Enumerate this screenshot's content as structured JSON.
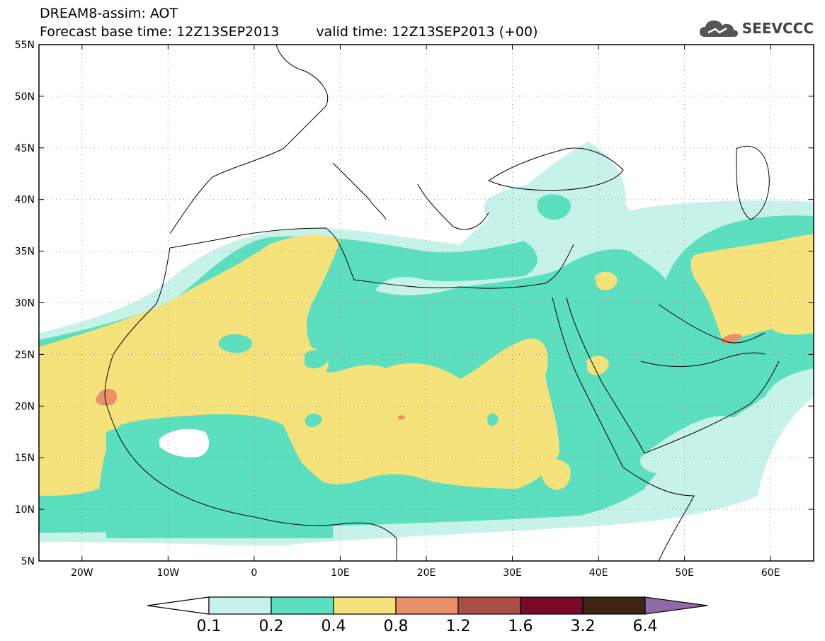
{
  "header": {
    "title_line1": "DREAM8-assim: AOT",
    "base_time": "Forecast base time: 12Z13SEP2013",
    "valid_time": "valid time: 12Z13SEP2013 (+00)"
  },
  "logo": {
    "text": "SEEVCCC",
    "icon": "cloud-icon"
  },
  "map": {
    "lon_range": [
      -25,
      65
    ],
    "lat_range": [
      5,
      55
    ],
    "lon_ticks": [
      {
        "value": -20,
        "label": "20W"
      },
      {
        "value": -10,
        "label": "10W"
      },
      {
        "value": 0,
        "label": "0"
      },
      {
        "value": 10,
        "label": "10E"
      },
      {
        "value": 20,
        "label": "20E"
      },
      {
        "value": 30,
        "label": "30E"
      },
      {
        "value": 40,
        "label": "40E"
      },
      {
        "value": 50,
        "label": "50E"
      },
      {
        "value": 60,
        "label": "60E"
      }
    ],
    "lat_ticks": [
      {
        "value": 55,
        "label": "55N"
      },
      {
        "value": 50,
        "label": "50N"
      },
      {
        "value": 45,
        "label": "45N"
      },
      {
        "value": 40,
        "label": "40N"
      },
      {
        "value": 35,
        "label": "35N"
      },
      {
        "value": 30,
        "label": "30N"
      },
      {
        "value": 25,
        "label": "25N"
      },
      {
        "value": 20,
        "label": "20N"
      },
      {
        "value": 15,
        "label": "15N"
      },
      {
        "value": 10,
        "label": "10N"
      },
      {
        "value": 5,
        "label": "5N"
      }
    ],
    "grid": true
  },
  "colorbar": {
    "labels": [
      "0.1",
      "0.2",
      "0.4",
      "0.8",
      "1.2",
      "1.6",
      "3.2",
      "6.4"
    ],
    "colors": [
      "#c6f2ea",
      "#5bdfbe",
      "#f6e27a",
      "#e8906a",
      "#ab4f44",
      "#7a0a2a",
      "#3d2413",
      "#8e6aa6"
    ],
    "below_color": "#ffffff"
  }
}
